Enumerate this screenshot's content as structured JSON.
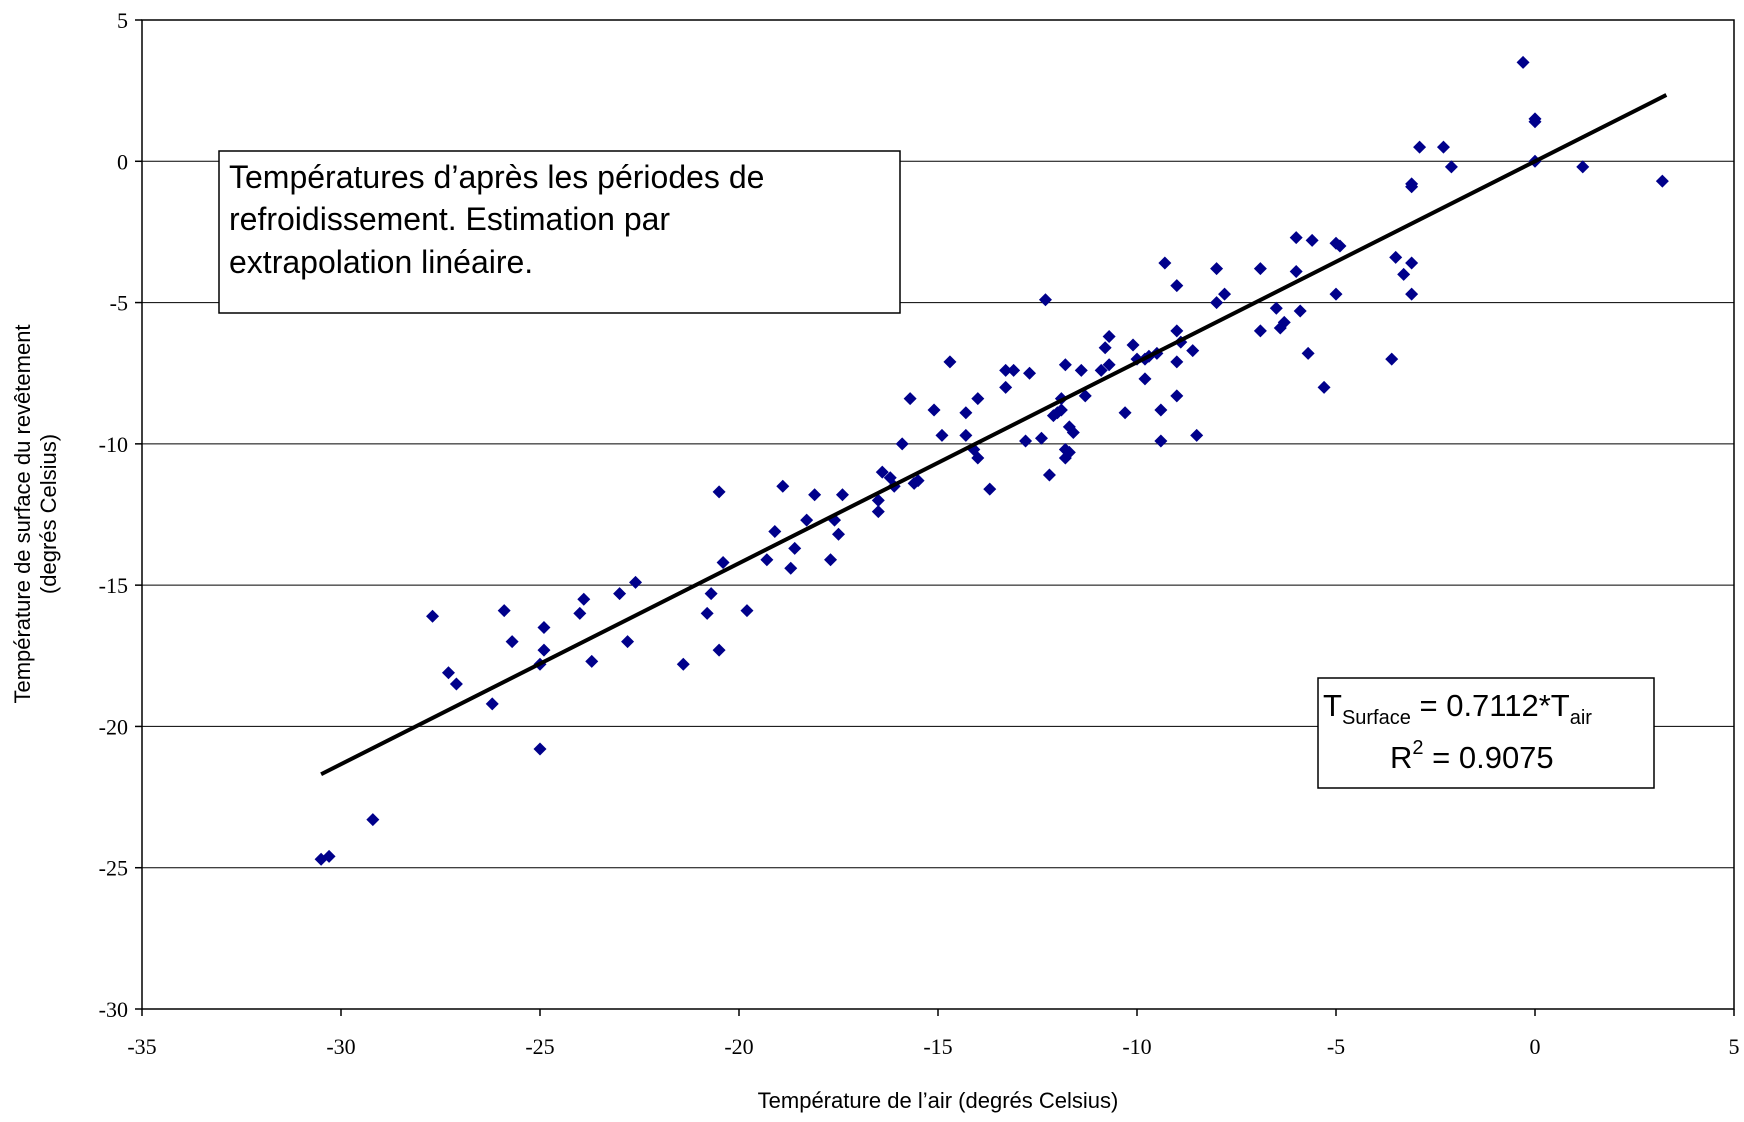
{
  "chart_data": {
    "type": "scatter",
    "title": "",
    "xlabel": "Température de l’air (degrés Celsius)",
    "ylabel": [
      "Température de surface du revêtement",
      "(degrés Celsius)"
    ],
    "xlim": [
      -35,
      5
    ],
    "ylim": [
      -30,
      5
    ],
    "xticks": [
      -35,
      -30,
      -25,
      -20,
      -15,
      -10,
      -5,
      0,
      5
    ],
    "yticks": [
      5,
      0,
      -5,
      -10,
      -15,
      -20,
      -25,
      -30
    ],
    "grid": "horizontal",
    "marker_color": "#00008B",
    "line_color": "#000000",
    "annotation_lines": [
      "Températures d’après les périodes de",
      "refroidissement. Estimation par",
      "extrapolation linéaire."
    ],
    "equation": {
      "lhs_main": "T",
      "lhs_sub": "Surface",
      "rhs_main": " = 0.7112*T",
      "rhs_sub": "air",
      "r2_main": "R",
      "r2_sup": "2",
      "r2_rest": " = 0.9075"
    },
    "trendline": {
      "slope": 0.7112,
      "intercept": 0,
      "x_range": [
        -30.5,
        3.3
      ]
    },
    "points": [
      [
        -30.5,
        -24.7
      ],
      [
        -30.3,
        -24.6
      ],
      [
        -29.2,
        -23.3
      ],
      [
        -27.7,
        -16.1
      ],
      [
        -27.3,
        -18.1
      ],
      [
        -27.1,
        -18.5
      ],
      [
        -26.2,
        -19.2
      ],
      [
        -25.9,
        -15.9
      ],
      [
        -25.7,
        -17.0
      ],
      [
        -24.9,
        -16.5
      ],
      [
        -24.9,
        -17.3
      ],
      [
        -25.0,
        -17.8
      ],
      [
        -25.0,
        -20.8
      ],
      [
        -24.0,
        -16.0
      ],
      [
        -23.9,
        -15.5
      ],
      [
        -23.7,
        -17.7
      ],
      [
        -23.0,
        -15.3
      ],
      [
        -22.8,
        -17.0
      ],
      [
        -22.6,
        -14.9
      ],
      [
        -21.4,
        -17.8
      ],
      [
        -20.7,
        -15.3
      ],
      [
        -20.8,
        -16.0
      ],
      [
        -20.5,
        -11.7
      ],
      [
        -20.5,
        -17.3
      ],
      [
        -20.4,
        -14.2
      ],
      [
        -19.8,
        -15.9
      ],
      [
        -19.3,
        -14.1
      ],
      [
        -19.1,
        -13.1
      ],
      [
        -18.9,
        -11.5
      ],
      [
        -18.7,
        -14.4
      ],
      [
        -18.6,
        -13.7
      ],
      [
        -18.3,
        -12.7
      ],
      [
        -18.1,
        -11.8
      ],
      [
        -17.7,
        -14.1
      ],
      [
        -17.6,
        -12.7
      ],
      [
        -17.5,
        -13.2
      ],
      [
        -17.4,
        -11.8
      ],
      [
        -16.5,
        -12.0
      ],
      [
        -16.5,
        -12.4
      ],
      [
        -16.4,
        -11.0
      ],
      [
        -16.2,
        -11.2
      ],
      [
        -16.1,
        -11.5
      ],
      [
        -15.9,
        -10.0
      ],
      [
        -15.7,
        -8.4
      ],
      [
        -15.6,
        -11.4
      ],
      [
        -15.5,
        -11.3
      ],
      [
        -15.1,
        -8.8
      ],
      [
        -14.9,
        -9.7
      ],
      [
        -14.7,
        -7.1
      ],
      [
        -14.3,
        -9.7
      ],
      [
        -14.3,
        -8.9
      ],
      [
        -14.1,
        -10.2
      ],
      [
        -14.0,
        -10.5
      ],
      [
        -14.0,
        -8.4
      ],
      [
        -13.7,
        -11.6
      ],
      [
        -13.3,
        -7.4
      ],
      [
        -13.3,
        -8.0
      ],
      [
        -13.1,
        -7.4
      ],
      [
        -12.8,
        -9.9
      ],
      [
        -12.7,
        -7.5
      ],
      [
        -12.4,
        -9.8
      ],
      [
        -12.3,
        -4.9
      ],
      [
        -12.2,
        -11.1
      ],
      [
        -12.1,
        -9.0
      ],
      [
        -12.0,
        -8.9
      ],
      [
        -11.9,
        -8.4
      ],
      [
        -11.9,
        -8.8
      ],
      [
        -11.8,
        -7.2
      ],
      [
        -11.8,
        -10.2
      ],
      [
        -11.8,
        -10.5
      ],
      [
        -11.7,
        -10.3
      ],
      [
        -11.7,
        -9.4
      ],
      [
        -11.6,
        -9.6
      ],
      [
        -11.4,
        -7.4
      ],
      [
        -11.3,
        -8.3
      ],
      [
        -10.9,
        -7.4
      ],
      [
        -10.8,
        -6.6
      ],
      [
        -10.7,
        -6.2
      ],
      [
        -10.7,
        -7.2
      ],
      [
        -10.3,
        -8.9
      ],
      [
        -10.1,
        -6.5
      ],
      [
        -10.0,
        -7.0
      ],
      [
        -9.8,
        -7.7
      ],
      [
        -9.8,
        -7.0
      ],
      [
        -9.7,
        -6.9
      ],
      [
        -9.5,
        -6.8
      ],
      [
        -9.4,
        -8.8
      ],
      [
        -9.4,
        -9.9
      ],
      [
        -9.3,
        -3.6
      ],
      [
        -9.0,
        -4.4
      ],
      [
        -9.0,
        -6.0
      ],
      [
        -9.0,
        -7.1
      ],
      [
        -9.0,
        -8.3
      ],
      [
        -8.9,
        -6.4
      ],
      [
        -8.6,
        -6.7
      ],
      [
        -8.5,
        -9.7
      ],
      [
        -8.0,
        -3.8
      ],
      [
        -8.0,
        -5.0
      ],
      [
        -7.8,
        -4.7
      ],
      [
        -6.9,
        -3.8
      ],
      [
        -6.9,
        -6.0
      ],
      [
        -6.5,
        -5.2
      ],
      [
        -6.4,
        -5.9
      ],
      [
        -6.3,
        -5.7
      ],
      [
        -6.0,
        -2.7
      ],
      [
        -6.0,
        -3.9
      ],
      [
        -5.9,
        -5.3
      ],
      [
        -5.7,
        -6.8
      ],
      [
        -5.6,
        -2.8
      ],
      [
        -5.3,
        -8.0
      ],
      [
        -5.0,
        -2.9
      ],
      [
        -4.9,
        -3.0
      ],
      [
        -5.0,
        -4.7
      ],
      [
        -3.6,
        -7.0
      ],
      [
        -3.5,
        -3.4
      ],
      [
        -3.3,
        -4.0
      ],
      [
        -3.1,
        -0.8
      ],
      [
        -3.1,
        -0.9
      ],
      [
        -3.1,
        -3.6
      ],
      [
        -3.1,
        -4.7
      ],
      [
        -2.9,
        0.5
      ],
      [
        -2.3,
        0.5
      ],
      [
        -2.1,
        -0.2
      ],
      [
        -0.3,
        3.5
      ],
      [
        0.0,
        1.4
      ],
      [
        0.0,
        1.5
      ],
      [
        0.0,
        0.0
      ],
      [
        1.2,
        -0.2
      ],
      [
        3.2,
        -0.7
      ]
    ]
  }
}
